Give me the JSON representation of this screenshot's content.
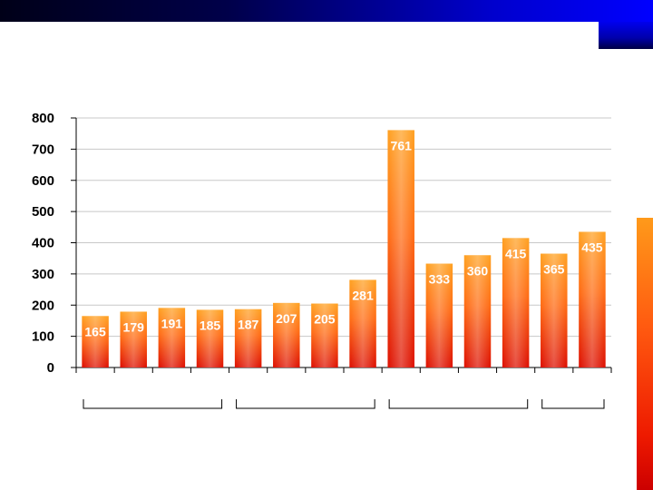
{
  "chart_data": {
    "type": "bar",
    "categories": [
      "",
      "",
      "",
      "",
      "",
      "",
      "",
      "",
      "",
      "",
      "",
      "",
      "",
      ""
    ],
    "values": [
      165,
      179,
      191,
      185,
      187,
      207,
      205,
      281,
      761,
      333,
      360,
      415,
      365,
      435
    ],
    "data_labels": [
      "165",
      "179",
      "191",
      "185",
      "187",
      "207",
      "205",
      "281",
      "761",
      "333",
      "360",
      "415",
      "365",
      "435"
    ],
    "title": "",
    "xlabel": "",
    "ylabel": "",
    "ylim": [
      0,
      800
    ],
    "yticks": [
      "0",
      "100",
      "200",
      "300",
      "400",
      "500",
      "600",
      "700",
      "800"
    ],
    "grid": true,
    "legend": "none",
    "groups": [
      {
        "label": "",
        "span": 4
      },
      {
        "label": "",
        "span": 4
      },
      {
        "label": "",
        "span": 4
      },
      {
        "label": "",
        "span": 2
      }
    ],
    "colors": {
      "bar_top": "#ff9c1e",
      "bar_bottom": "#e01000",
      "grid": "#c8c8c8"
    }
  }
}
